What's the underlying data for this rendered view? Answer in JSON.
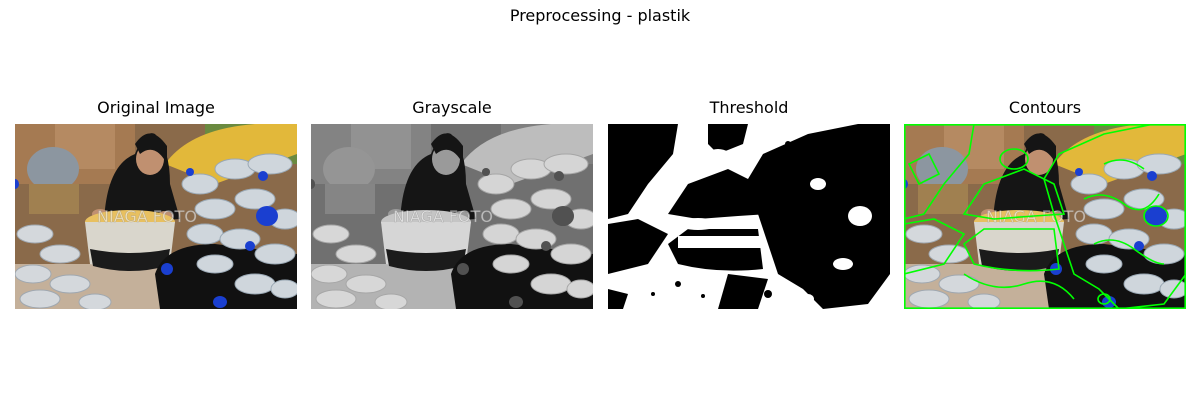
{
  "figure": {
    "title": "Preprocessing - plastik"
  },
  "panels": [
    {
      "title": "Original Image",
      "mode": "color",
      "content": "photo of a woman filling a basket with plastic bottles"
    },
    {
      "title": "Grayscale",
      "mode": "grayscale",
      "content": "grayscale version of the photo"
    },
    {
      "title": "Threshold",
      "mode": "binary",
      "content": "binary black and white threshold mask"
    },
    {
      "title": "Contours",
      "mode": "contours",
      "content": "photo with green contour outlines drawn over it"
    }
  ],
  "watermark": "NIAGA FOTO",
  "colors": {
    "contour": "#00ff00",
    "bottle_cap": "#1a3fd0",
    "basket": "#e8c060",
    "background": "#ffffff"
  }
}
